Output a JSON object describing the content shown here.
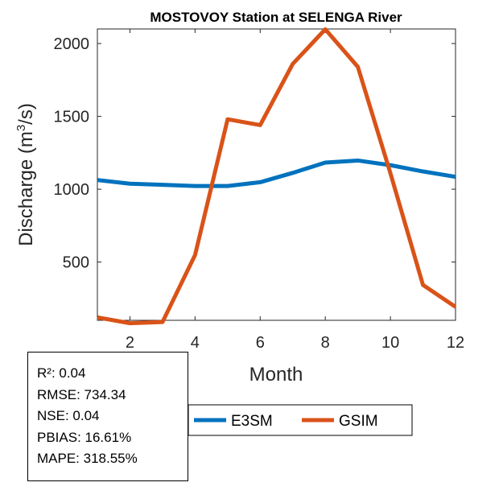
{
  "chart_data": {
    "type": "line",
    "title": "MOSTOVOY  Station at  SELENGA  River",
    "xlabel": "Month",
    "ylabel": "Discharge (m³/s)",
    "ylabel_base": "Discharge (m",
    "ylabel_sup": "3",
    "ylabel_tail": "/s)",
    "xlim": [
      1,
      12
    ],
    "ylim": [
      100,
      2100
    ],
    "xticks": [
      2,
      4,
      6,
      8,
      10,
      12
    ],
    "yticks": [
      500,
      1000,
      1500,
      2000
    ],
    "x": [
      1,
      2,
      3,
      4,
      5,
      6,
      7,
      8,
      9,
      10,
      11,
      12
    ],
    "series": [
      {
        "name": "E3SM",
        "color": "#0072BD",
        "values": [
          1063,
          1038,
          1030,
          1022,
          1022,
          1048,
          1112,
          1183,
          1197,
          1165,
          1122,
          1085
        ]
      },
      {
        "name": "GSIM",
        "color": "#D95319",
        "values": [
          120,
          80,
          88,
          548,
          1480,
          1440,
          1860,
          2098,
          1840,
          1110,
          343,
          192
        ]
      }
    ],
    "legend_position": "bottom-center",
    "grid": false
  },
  "stats": [
    {
      "label": "R²",
      "value": "0.04"
    },
    {
      "label": "RMSE",
      "value": "734.34"
    },
    {
      "label": "NSE",
      "value": "0.04"
    },
    {
      "label": "PBIAS",
      "value": "16.61%"
    },
    {
      "label": "MAPE",
      "value": "318.55%"
    }
  ]
}
